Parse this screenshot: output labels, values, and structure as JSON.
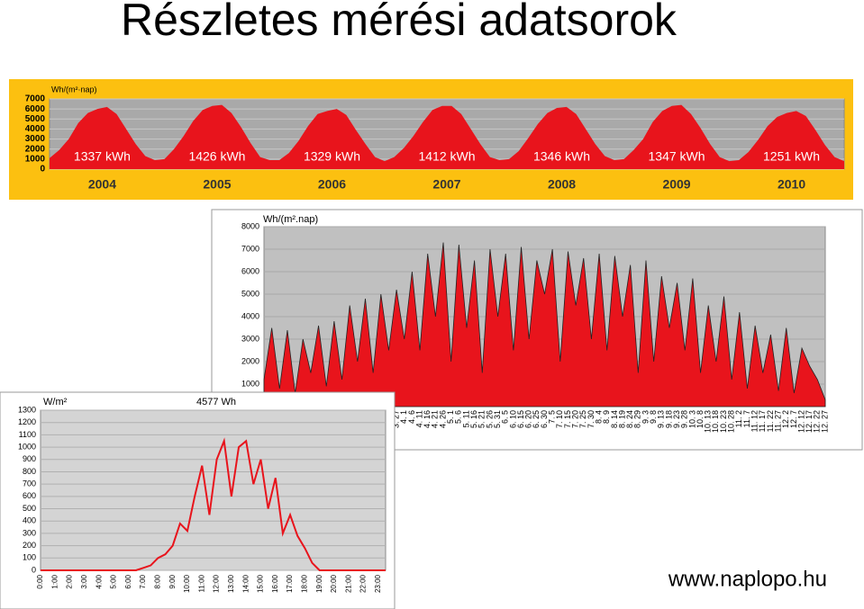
{
  "title": "Részletes mérési adatsorok",
  "footer": "www.naplopo.hu",
  "chart_data": [
    {
      "type": "area",
      "ylabel": "Wh/(m²·nap)",
      "categories": [
        null,
        null,
        null,
        null,
        null,
        null,
        "2004",
        null,
        null,
        null,
        null,
        null,
        null,
        null,
        null,
        null,
        null,
        null,
        "2005",
        null,
        null,
        null,
        null,
        null,
        null,
        null,
        null,
        null,
        null,
        null,
        "2006",
        null,
        null,
        null,
        null,
        null,
        null,
        null,
        null,
        null,
        null,
        null,
        "2007",
        null,
        null,
        null,
        null,
        null,
        null,
        null,
        null,
        null,
        null,
        null,
        "2008",
        null,
        null,
        null,
        null,
        null,
        null,
        null,
        null,
        null,
        null,
        null,
        "2009",
        null,
        null,
        null,
        null,
        null,
        null,
        null,
        null,
        null,
        null,
        null,
        "2010",
        null,
        null,
        null,
        null,
        null
      ],
      "values": [
        1100,
        1900,
        3000,
        4600,
        5600,
        6000,
        6200,
        5500,
        4000,
        2500,
        1300,
        900,
        1000,
        2000,
        3300,
        4800,
        5900,
        6300,
        6400,
        5600,
        4200,
        2600,
        1200,
        900,
        900,
        1600,
        2800,
        4300,
        5500,
        5800,
        6000,
        5400,
        3900,
        2500,
        1200,
        800,
        1200,
        2100,
        3300,
        4700,
        5900,
        6300,
        6300,
        5500,
        4000,
        2500,
        1200,
        900,
        1000,
        1800,
        3100,
        4500,
        5600,
        6100,
        6200,
        5500,
        4000,
        2500,
        1300,
        900,
        1000,
        1900,
        3000,
        4700,
        5800,
        6300,
        6400,
        5500,
        4100,
        2500,
        1200,
        800,
        900,
        1700,
        2900,
        4300,
        5200,
        5600,
        5800,
        5300,
        3900,
        2400,
        1200,
        800
      ],
      "color": "#e8141c",
      "annotations": [
        "1337 kWh",
        "1426 kWh",
        "1329 kWh",
        "1412 kWh",
        "1346 kWh",
        "1347 kWh",
        "1251 kWh"
      ],
      "ylim": [
        0,
        7000
      ],
      "yticks": [
        0,
        1000,
        2000,
        3000,
        4000,
        5000,
        6000,
        7000
      ],
      "grid": true
    },
    {
      "type": "area",
      "ylabel": "Wh/(m².nap)",
      "categories": [
        "1. 1",
        "1. 6",
        "1. 11",
        "1. 16",
        "1. 21",
        "1. 26",
        "1. 31",
        "2. 5",
        "2. 10",
        "2. 15",
        "2. 20",
        "2. 25",
        "3. 2",
        "3. 7",
        "3. 12",
        "3. 17",
        "3. 22",
        "3. 27",
        "4. 1",
        "4. 6",
        "4. 11",
        "4. 16",
        "4. 21",
        "4. 26",
        "5. 1",
        "5. 6",
        "5. 11",
        "5. 16",
        "5. 21",
        "5. 26",
        "5. 31",
        "6. 5",
        "6. 10",
        "6. 15",
        "6. 20",
        "6. 25",
        "6. 30",
        "7. 5",
        "7. 10",
        "7. 15",
        "7. 20",
        "7. 25",
        "7. 30",
        "8. 4",
        "8. 9",
        "8. 14",
        "8. 19",
        "8. 24",
        "8. 29",
        "9. 3",
        "9. 8",
        "9. 13",
        "9. 18",
        "9. 23",
        "9. 28",
        "10. 3",
        "10. 8",
        "10. 13",
        "10. 18",
        "10. 23",
        "10. 28",
        "11. 2",
        "11. 7",
        "11. 12",
        "11. 17",
        "11. 22",
        "11. 27",
        "12. 2",
        "12. 7",
        "12. 12",
        "12. 17",
        "12. 22",
        "12. 27"
      ],
      "values": [
        1200,
        3500,
        800,
        3400,
        600,
        3000,
        1500,
        3600,
        900,
        3800,
        1200,
        4500,
        2000,
        4800,
        1500,
        5000,
        2500,
        5200,
        3000,
        6000,
        2500,
        6800,
        4000,
        7300,
        2000,
        7200,
        3500,
        6500,
        1500,
        7000,
        4000,
        6800,
        2500,
        7100,
        3000,
        6500,
        5000,
        7000,
        2000,
        6900,
        4500,
        6600,
        3000,
        6800,
        2500,
        6700,
        4000,
        6300,
        1500,
        6500,
        2000,
        5800,
        3500,
        5500,
        2500,
        5700,
        1500,
        4500,
        2000,
        4900,
        1200,
        4200,
        800,
        3600,
        1500,
        3200,
        700,
        3500,
        600,
        2600,
        1800,
        1200,
        300
      ],
      "color": "#e8141c",
      "ylim": [
        0,
        8000
      ],
      "yticks": [
        0,
        1000,
        2000,
        3000,
        4000,
        5000,
        6000,
        7000,
        8000
      ],
      "grid": true
    },
    {
      "type": "line",
      "ylabel": "W/m²",
      "annotations": [
        "4577 Wh"
      ],
      "categories": [
        "0:00",
        null,
        "1:00",
        null,
        "2:00",
        null,
        "3:00",
        null,
        "4:00",
        null,
        "5:00",
        null,
        "6:00",
        null,
        "7:00",
        null,
        "8:00",
        null,
        "9:00",
        null,
        "10:00",
        null,
        "11:00",
        null,
        "12:00",
        null,
        "13:00",
        null,
        "14:00",
        null,
        "15:00",
        null,
        "16:00",
        null,
        "17:00",
        null,
        "18:00",
        null,
        "19:00",
        null,
        "20:00",
        null,
        "21:00",
        null,
        "22:00",
        null,
        "23:00",
        null
      ],
      "values": [
        0,
        0,
        0,
        0,
        0,
        0,
        0,
        0,
        0,
        0,
        0,
        0,
        0,
        0,
        20,
        40,
        100,
        130,
        200,
        380,
        320,
        600,
        850,
        450,
        900,
        1050,
        600,
        1000,
        1050,
        700,
        900,
        500,
        750,
        300,
        450,
        280,
        180,
        60,
        0,
        0,
        0,
        0,
        0,
        0,
        0,
        0,
        0,
        0
      ],
      "color": "#e8141c",
      "ylim": [
        0,
        1300
      ],
      "yticks": [
        0,
        100,
        200,
        300,
        400,
        500,
        600,
        700,
        800,
        900,
        1000,
        1100,
        1200,
        1300
      ],
      "grid": true
    }
  ]
}
